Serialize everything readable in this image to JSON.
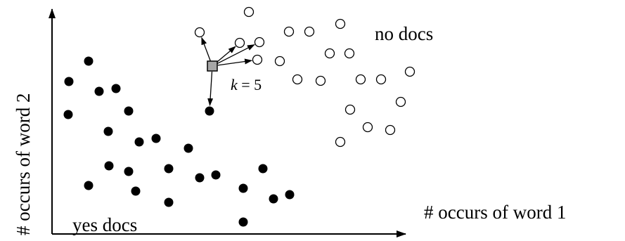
{
  "colors": {
    "ink": "#000000",
    "paper": "#ffffff",
    "query_fill": "#a6a6a6"
  },
  "labels": {
    "y_axis": "# occurs of word 2",
    "x_axis": "# occurs of word 1",
    "class_no": "no docs",
    "class_yes": "yes docs",
    "k_var": "k",
    "k_rest": " = 5"
  },
  "diagram": {
    "k": 5,
    "query_point": "unlabeled query document (grey square)",
    "neighbors": 5,
    "classes": [
      {
        "name": "no docs",
        "marker": "open circle"
      },
      {
        "name": "yes docs",
        "marker": "filled circle"
      }
    ]
  }
}
